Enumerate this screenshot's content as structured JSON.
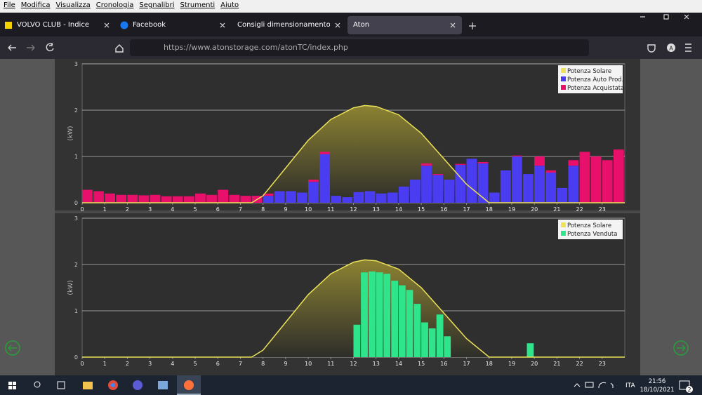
{
  "menu": [
    "File",
    "Modifica",
    "Visualizza",
    "Cronologia",
    "Segnalibri",
    "Strumenti",
    "Aiuto"
  ],
  "tabs": [
    "VOLVO CLUB - Indice",
    "Facebook",
    "Consigli dimensionamento fotovolt",
    "Aton"
  ],
  "url": "https://www.atonstorage.com/atonTC/index.php",
  "profile": "A",
  "taskbar": {
    "lang": "ITA",
    "time": "21:56",
    "date": "18/10/2021",
    "notifications": "2"
  },
  "chart_data": [
    {
      "type": "bar",
      "stacked": true,
      "ylabel": "(kW)",
      "xlim": [
        0,
        24
      ],
      "xticks": [
        0,
        1,
        2,
        3,
        4,
        5,
        6,
        7,
        8,
        9,
        10,
        11,
        12,
        13,
        14,
        15,
        16,
        17,
        18,
        19,
        20,
        21,
        22,
        23
      ],
      "ylim": [
        0,
        3
      ],
      "yticks": [
        0,
        1,
        2,
        3
      ],
      "grid": true,
      "legend": "upper right",
      "series": [
        {
          "name": "Potenza Solare",
          "color": "#ede25a",
          "type": "area",
          "x": [
            0,
            7.5,
            8,
            9,
            10,
            11,
            12,
            12.5,
            13,
            14,
            15,
            16,
            17,
            18,
            24
          ],
          "values": [
            0,
            0,
            0.15,
            0.75,
            1.35,
            1.8,
            2.05,
            2.1,
            2.08,
            1.9,
            1.5,
            0.95,
            0.4,
            0,
            0
          ]
        },
        {
          "name": "Potenza Auto Prod.",
          "color": "#4a3cf0",
          "type": "bar",
          "x": [
            0,
            0.5,
            1,
            1.5,
            2,
            2.5,
            3,
            3.5,
            4,
            4.5,
            5,
            5.5,
            6,
            6.5,
            7,
            7.5,
            8,
            8.5,
            9,
            9.5,
            10,
            10.5,
            11,
            11.5,
            12,
            12.5,
            13,
            13.5,
            14,
            14.5,
            15,
            15.5,
            16,
            16.5,
            17,
            17.5,
            18,
            18.5,
            19,
            19.5,
            20,
            20.5,
            21,
            21.5,
            22,
            22.5,
            23,
            23.5
          ],
          "values": [
            0,
            0,
            0,
            0,
            0,
            0,
            0,
            0,
            0,
            0,
            0,
            0,
            0,
            0,
            0,
            0,
            0.15,
            0.25,
            0.25,
            0.22,
            0.45,
            1.05,
            0.15,
            0.12,
            0.23,
            0.25,
            0.2,
            0.22,
            0.35,
            0.5,
            0.8,
            0.6,
            0.5,
            0.82,
            0.95,
            0.85,
            0.22,
            0.7,
            1.0,
            0.62,
            0.8,
            0.65,
            0.32,
            0.8,
            0,
            0,
            0,
            0
          ]
        },
        {
          "name": "Potenza Acquistata",
          "color": "#e8106a",
          "type": "bar",
          "x": [
            0,
            0.5,
            1,
            1.5,
            2,
            2.5,
            3,
            3.5,
            4,
            4.5,
            5,
            5.5,
            6,
            6.5,
            7,
            7.5,
            8,
            8.5,
            9,
            9.5,
            10,
            10.5,
            11,
            11.5,
            12,
            12.5,
            13,
            13.5,
            14,
            14.5,
            15,
            15.5,
            16,
            16.5,
            17,
            17.5,
            18,
            18.5,
            19,
            19.5,
            20,
            20.5,
            21,
            21.5,
            22,
            22.5,
            23,
            23.5
          ],
          "values": [
            0.28,
            0.25,
            0.2,
            0.17,
            0.17,
            0.16,
            0.17,
            0.14,
            0.14,
            0.14,
            0.2,
            0.17,
            0.28,
            0.17,
            0.15,
            0.15,
            0.05,
            0,
            0,
            0,
            0.05,
            0.05,
            0,
            0,
            0,
            0,
            0,
            0,
            0,
            0,
            0.05,
            0.02,
            0,
            0.02,
            0,
            0.03,
            0,
            0,
            0.02,
            0,
            0.2,
            0.05,
            0,
            0.12,
            1.1,
            1.0,
            0.92,
            1.15
          ]
        }
      ]
    },
    {
      "type": "bar",
      "stacked": false,
      "ylabel": "(kW)",
      "xlim": [
        0,
        24
      ],
      "xticks": [
        0,
        1,
        2,
        3,
        4,
        5,
        6,
        7,
        8,
        9,
        10,
        11,
        12,
        13,
        14,
        15,
        16,
        17,
        18,
        19,
        20,
        21,
        22,
        23
      ],
      "ylim": [
        0,
        3
      ],
      "yticks": [
        0,
        1,
        2,
        3
      ],
      "grid": true,
      "legend": "upper right",
      "series": [
        {
          "name": "Potenza Solare",
          "color": "#ede25a",
          "type": "area",
          "x": [
            0,
            7.5,
            8,
            9,
            10,
            11,
            12,
            12.5,
            13,
            14,
            15,
            16,
            17,
            18,
            24
          ],
          "values": [
            0,
            0,
            0.15,
            0.75,
            1.35,
            1.8,
            2.05,
            2.1,
            2.08,
            1.9,
            1.5,
            0.95,
            0.4,
            0,
            0
          ]
        },
        {
          "name": "Potenza Venduta",
          "color": "#2ee58c",
          "type": "bar",
          "x": [
            12,
            12.33,
            12.67,
            13,
            13.33,
            13.67,
            14,
            14.33,
            14.67,
            15,
            15.33,
            15.67,
            16,
            19.67
          ],
          "values": [
            0.7,
            1.83,
            1.85,
            1.83,
            1.8,
            1.65,
            1.55,
            1.45,
            1.15,
            0.75,
            0.62,
            0.92,
            0.45,
            0.3
          ]
        }
      ]
    }
  ]
}
